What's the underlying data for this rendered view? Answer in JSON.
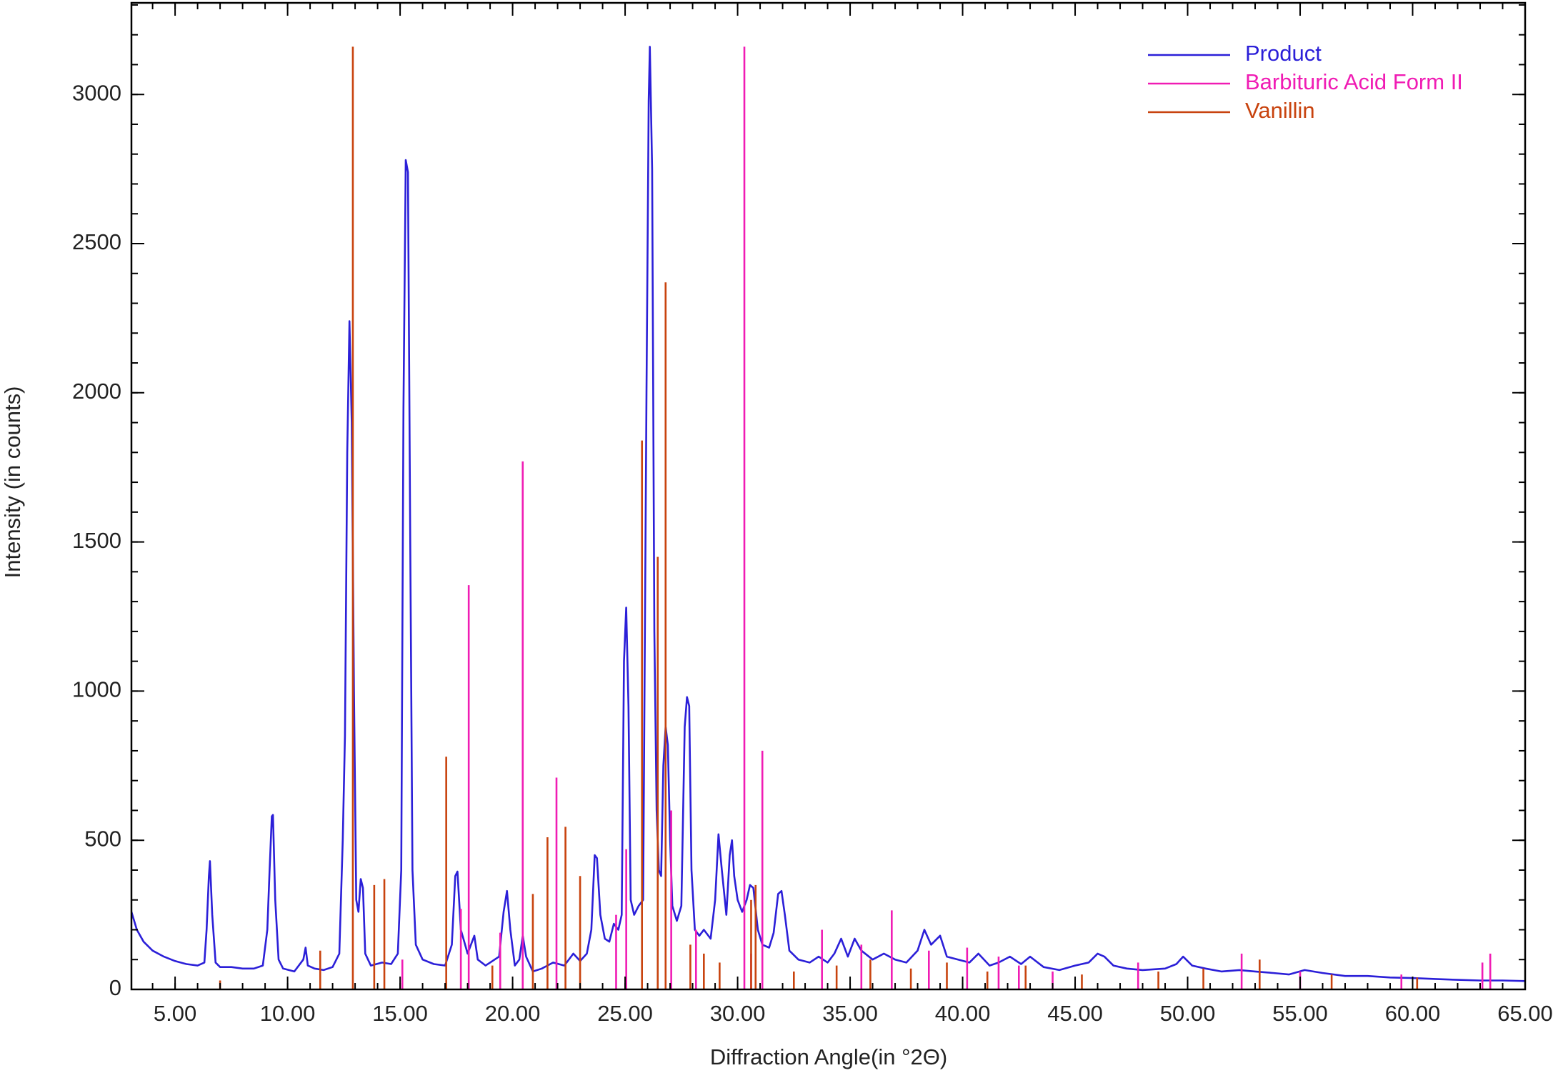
{
  "chart_data": {
    "type": "line",
    "x_label": "Diffraction Angle(in °2Θ)",
    "y_label": "Intensity (in counts)",
    "xlim": [
      3.06,
      65
    ],
    "ylim": [
      0,
      3307
    ],
    "xticks": [
      {
        "value": 5,
        "label": "5.00"
      },
      {
        "value": 10,
        "label": "10.00"
      },
      {
        "value": 15,
        "label": "15.00"
      },
      {
        "value": 20,
        "label": "20.00"
      },
      {
        "value": 25,
        "label": "25.00"
      },
      {
        "value": 30,
        "label": "30.00"
      },
      {
        "value": 35,
        "label": "35.00"
      },
      {
        "value": 40,
        "label": "40.00"
      },
      {
        "value": 45,
        "label": "45.00"
      },
      {
        "value": 50,
        "label": "50.00"
      },
      {
        "value": 55,
        "label": "55.00"
      },
      {
        "value": 60,
        "label": "60.00"
      },
      {
        "value": 65,
        "label": "65.00"
      }
    ],
    "yticks": [
      0,
      500,
      1000,
      1500,
      2000,
      2500,
      3000
    ],
    "xminor": 1,
    "yminor": 100,
    "legend": "upper right",
    "series": [
      {
        "name": "Product",
        "color": "#2b1fd8",
        "kind": "line",
        "x": [
          3.06,
          3.3,
          3.6,
          4,
          4.5,
          5,
          5.5,
          6,
          6.3,
          6.4,
          6.5,
          6.55,
          6.65,
          6.8,
          7,
          7.5,
          8,
          8.5,
          8.9,
          9.1,
          9.2,
          9.3,
          9.35,
          9.45,
          9.6,
          9.8,
          10.3,
          10.7,
          10.8,
          10.9,
          11.2,
          11.6,
          12,
          12.3,
          12.45,
          12.55,
          12.65,
          12.75,
          12.85,
          12.95,
          13.05,
          13.15,
          13.25,
          13.35,
          13.45,
          13.7,
          14.2,
          14.6,
          14.9,
          15.05,
          15.15,
          15.25,
          15.35,
          15.45,
          15.55,
          15.7,
          16,
          16.5,
          17,
          17.3,
          17.45,
          17.55,
          17.7,
          17.85,
          18,
          18.3,
          18.45,
          18.8,
          19.4,
          19.6,
          19.75,
          19.9,
          20.1,
          20.3,
          20.45,
          20.6,
          20.9,
          21.3,
          21.8,
          22.3,
          22.7,
          23,
          23.3,
          23.5,
          23.65,
          23.75,
          23.9,
          24.1,
          24.3,
          24.5,
          24.7,
          24.85,
          24.95,
          25.05,
          25.15,
          25.25,
          25.4,
          25.6,
          25.8,
          25.95,
          26.05,
          26.1,
          26.2,
          26.3,
          26.4,
          26.5,
          26.6,
          26.7,
          26.8,
          26.9,
          27,
          27.1,
          27.3,
          27.5,
          27.65,
          27.75,
          27.85,
          27.95,
          28.1,
          28.3,
          28.5,
          28.8,
          29,
          29.15,
          29.3,
          29.5,
          29.65,
          29.75,
          29.85,
          30,
          30.2,
          30.4,
          30.55,
          30.7,
          30.9,
          31.1,
          31.4,
          31.6,
          31.8,
          31.95,
          32.1,
          32.3,
          32.7,
          33.2,
          33.6,
          34,
          34.3,
          34.6,
          34.9,
          35.2,
          35.5,
          36,
          36.5,
          37,
          37.5,
          38,
          38.3,
          38.6,
          39,
          39.3,
          39.8,
          40.3,
          40.7,
          41.2,
          41.6,
          42.1,
          42.6,
          43,
          43.6,
          44.3,
          45,
          45.6,
          46,
          46.3,
          46.7,
          47.3,
          48,
          49,
          49.5,
          49.8,
          50.2,
          50.8,
          51.5,
          52.3,
          53,
          53.8,
          54.5,
          55.2,
          56,
          57,
          58,
          59,
          60,
          61,
          62,
          63,
          64,
          65
        ],
        "values": [
          260,
          200,
          160,
          130,
          110,
          95,
          85,
          80,
          90,
          200,
          380,
          430,
          250,
          90,
          75,
          75,
          70,
          70,
          80,
          200,
          400,
          580,
          585,
          300,
          100,
          70,
          60,
          100,
          140,
          80,
          70,
          65,
          75,
          120,
          500,
          850,
          1800,
          2240,
          1900,
          1000,
          300,
          260,
          370,
          340,
          120,
          80,
          90,
          85,
          120,
          400,
          1950,
          2780,
          2740,
          1500,
          400,
          150,
          100,
          85,
          80,
          150,
          380,
          395,
          200,
          160,
          120,
          180,
          100,
          80,
          110,
          260,
          330,
          200,
          80,
          100,
          180,
          110,
          60,
          70,
          90,
          80,
          120,
          95,
          120,
          200,
          450,
          440,
          250,
          170,
          160,
          220,
          200,
          250,
          1100,
          1280,
          950,
          300,
          250,
          280,
          300,
          2000,
          2980,
          3160,
          2750,
          1200,
          600,
          400,
          380,
          750,
          880,
          820,
          500,
          280,
          230,
          280,
          880,
          980,
          950,
          400,
          200,
          180,
          200,
          170,
          300,
          520,
          400,
          250,
          450,
          500,
          380,
          300,
          260,
          300,
          350,
          340,
          200,
          150,
          140,
          190,
          320,
          330,
          250,
          130,
          100,
          90,
          110,
          90,
          120,
          170,
          110,
          170,
          130,
          100,
          120,
          100,
          90,
          130,
          200,
          150,
          180,
          110,
          100,
          90,
          120,
          80,
          90,
          110,
          85,
          110,
          75,
          65,
          80,
          90,
          120,
          110,
          80,
          70,
          65,
          70,
          85,
          110,
          80,
          70,
          60,
          65,
          60,
          55,
          50,
          65,
          55,
          45,
          45,
          40,
          38,
          35,
          32,
          30,
          30,
          28
        ]
      },
      {
        "name": "Barbituric Acid Form II",
        "color": "#f01cb4",
        "kind": "stem",
        "x": [
          15.1,
          17.7,
          18.05,
          19.45,
          20.45,
          21.95,
          24.6,
          25.05,
          27.05,
          28.15,
          30.3,
          30.6,
          31.1,
          33.75,
          35.5,
          36.85,
          38.5,
          40.2,
          41.6,
          42.5,
          44,
          47.8,
          52.4,
          55,
          59.5,
          63.1,
          63.45
        ],
        "values": [
          100,
          270,
          1355,
          190,
          1770,
          710,
          250,
          470,
          600,
          200,
          3160,
          120,
          800,
          200,
          150,
          265,
          130,
          140,
          110,
          80,
          60,
          90,
          120,
          60,
          50,
          90,
          120
        ]
      },
      {
        "name": "Vanillin",
        "color": "#c8430e",
        "kind": "stem",
        "x": [
          7,
          11.45,
          12.9,
          13.85,
          14.3,
          17.05,
          19.1,
          20.9,
          21.55,
          22.35,
          23,
          25.75,
          26.45,
          26.8,
          27.9,
          28.5,
          29.2,
          30.6,
          30.8,
          32.5,
          34.4,
          35.9,
          37.7,
          39.3,
          41.1,
          42.8,
          45.3,
          48.7,
          50.7,
          53.2,
          56.4,
          60.2
        ],
        "values": [
          30,
          130,
          3160,
          350,
          370,
          780,
          80,
          320,
          510,
          545,
          380,
          1840,
          1450,
          2370,
          150,
          120,
          90,
          300,
          350,
          60,
          80,
          100,
          70,
          90,
          60,
          80,
          50,
          60,
          70,
          100,
          50,
          40
        ]
      }
    ]
  }
}
